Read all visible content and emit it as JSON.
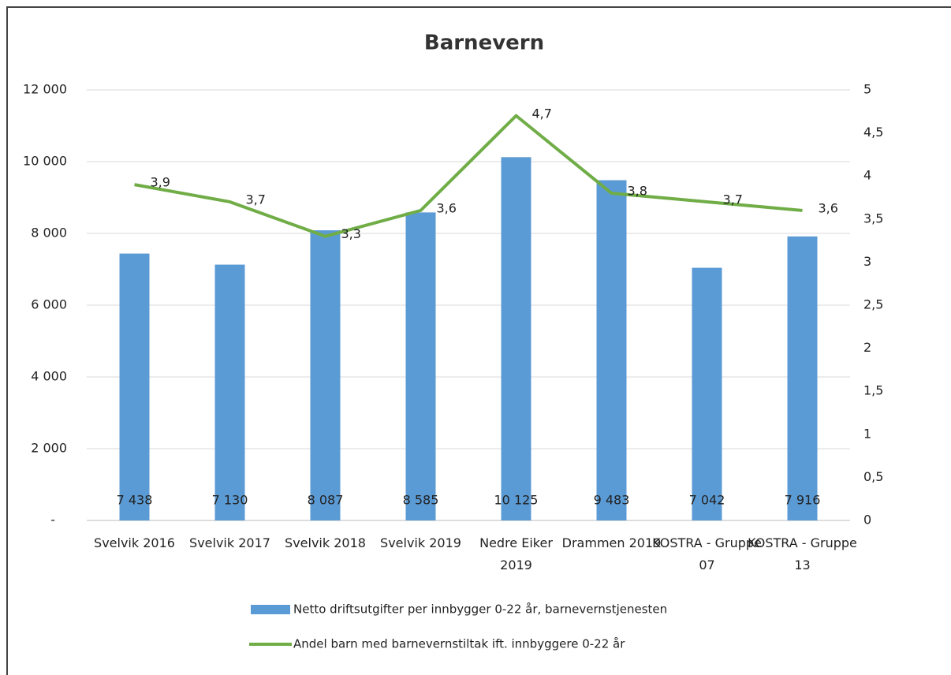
{
  "chart_data": {
    "type": "bar",
    "title": "Barnevern",
    "categories": [
      "Svelvik 2016",
      "Svelvik 2017",
      "Svelvik 2018",
      "Svelvik 2019",
      "Nedre Eiker 2019",
      "Drammen 2019",
      "KOSTRA - Gruppe 07",
      "KOSTRA - Gruppe 13"
    ],
    "series": [
      {
        "name": "Netto driftsutgifter per innbygger 0-22 år, barnevernstjenesten",
        "type": "bar",
        "color": "#5b9bd5",
        "values": [
          7438,
          7130,
          8087,
          8585,
          10125,
          9483,
          7042,
          7916
        ],
        "value_labels": [
          "7 438",
          "7 130",
          "8 087",
          "8 585",
          "10 125",
          "9 483",
          "7 042",
          "7 916"
        ]
      },
      {
        "name": "Andel barn med barnevernstiltak ift. innbyggere 0-22 år",
        "type": "line",
        "axis": "y2",
        "color": "#70ad47",
        "values": [
          3.9,
          3.7,
          3.3,
          3.6,
          4.7,
          3.8,
          3.7,
          3.6
        ],
        "value_labels": [
          "3,9",
          "3,7",
          "3,3",
          "3,6",
          "4,7",
          "3,8",
          "3,7",
          "3,6"
        ]
      }
    ],
    "ylim": [
      0,
      12000
    ],
    "yticks": [
      {
        "value": 0,
        "label": "-"
      },
      {
        "value": 2000,
        "label": "2 000"
      },
      {
        "value": 4000,
        "label": "4 000"
      },
      {
        "value": 6000,
        "label": "6 000"
      },
      {
        "value": 8000,
        "label": "8 000"
      },
      {
        "value": 10000,
        "label": "10 000"
      },
      {
        "value": 12000,
        "label": "12 000"
      }
    ],
    "y2lim": [
      0,
      5
    ],
    "y2ticks": [
      0,
      {
        "value": 0.5,
        "label": "0,5"
      },
      1,
      {
        "value": 1.5,
        "label": "1,5"
      },
      2,
      {
        "value": 2.5,
        "label": "2,5"
      },
      3,
      {
        "value": 3.5,
        "label": "3,5"
      },
      4,
      {
        "value": 4.5,
        "label": "4,5"
      },
      5
    ],
    "grid": true,
    "legend": "bottom"
  }
}
